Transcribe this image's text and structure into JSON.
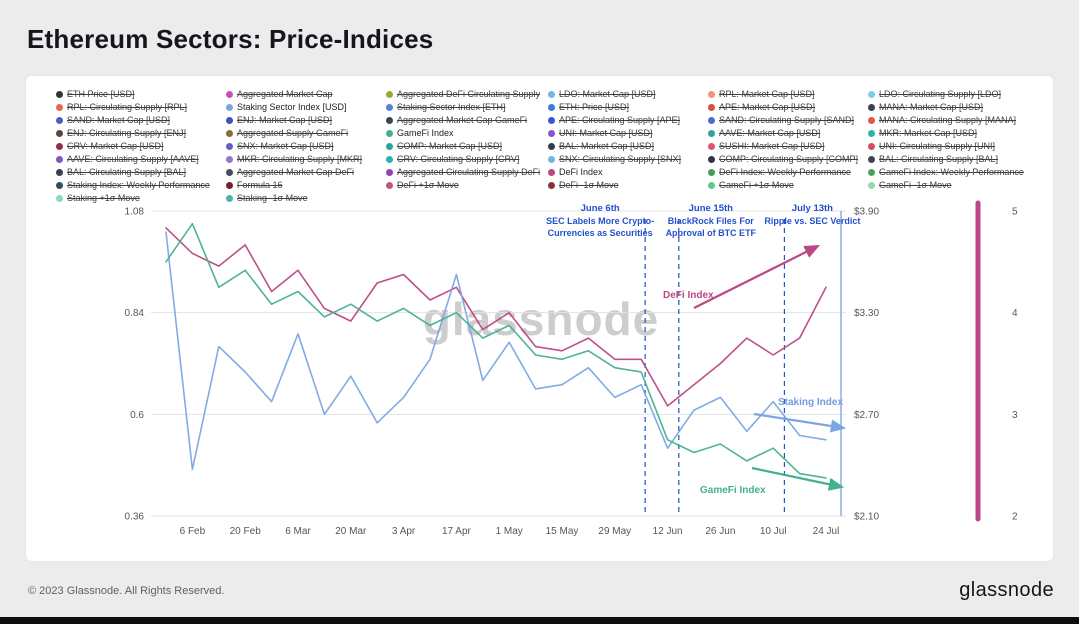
{
  "page": {
    "title": "Ethereum Sectors: Price-Indices",
    "footer_left": "© 2023 Glassnode. All Rights Reserved.",
    "brand": "glassnode",
    "watermark": "glassnode"
  },
  "legend": {
    "columns": [
      [
        {
          "label": "ETH Price [USD]",
          "color": "#2e3440",
          "active": false
        },
        {
          "label": "RPL: Circulating Supply [RPL]",
          "color": "#e06a4f",
          "active": false
        },
        {
          "label": "SAND: Market Cap [USD]",
          "color": "#4a5fc1",
          "active": false
        },
        {
          "label": "ENJ: Circulating Supply [ENJ]",
          "color": "#54483e",
          "active": false
        },
        {
          "label": "CRV: Market Cap [USD]",
          "color": "#8d2f4c",
          "active": false
        },
        {
          "label": "AAVE: Circulating Supply [AAVE]",
          "color": "#7e57c2",
          "active": false
        },
        {
          "label": "BAL: Circulating Supply [BAL]",
          "color": "#3b3f4a",
          "active": false
        },
        {
          "label": "Staking Index: Weekly Performance",
          "color": "#2f4f5f",
          "active": false
        },
        {
          "label": "Staking +1σ Move",
          "color": "#8fd6c9",
          "active": false
        }
      ],
      [
        {
          "label": "Aggregated Market Cap",
          "color": "#c84fc0",
          "active": false
        },
        {
          "label": "Staking Sector Index [USD]",
          "color": "#7aa7e3",
          "active": true
        },
        {
          "label": "ENJ: Market Cap [USD]",
          "color": "#3f51b5",
          "active": false
        },
        {
          "label": "Aggregated Supply GameFi",
          "color": "#8a6d2f",
          "active": false
        },
        {
          "label": "SNX: Market Cap [USD]",
          "color": "#6a5acd",
          "active": false
        },
        {
          "label": "MKR: Circulating Supply [MKR]",
          "color": "#9575cd",
          "active": false
        },
        {
          "label": "Aggregated Market Cap DeFi",
          "color": "#474b63",
          "active": false
        },
        {
          "label": "Formula 16",
          "color": "#7b1f2e",
          "active": false
        },
        {
          "label": "Staking -1σ Move",
          "color": "#49b6a9",
          "active": false
        }
      ],
      [
        {
          "label": "Aggregated DeFi Circulating Supply",
          "color": "#a0a832",
          "active": false
        },
        {
          "label": "Staking Sector Index [ETH]",
          "color": "#4f86d8",
          "active": false
        },
        {
          "label": "Aggregated Market Cap GameFi",
          "color": "#37474f",
          "active": false
        },
        {
          "label": "GameFi Index",
          "color": "#44b08e",
          "active": true
        },
        {
          "label": "COMP: Market Cap [USD]",
          "color": "#26a69a",
          "active": false
        },
        {
          "label": "CRV: Circulating Supply [CRV]",
          "color": "#29b0bd",
          "active": false
        },
        {
          "label": "Aggregated Circulating Supply DeFi",
          "color": "#8e44ad",
          "active": false
        },
        {
          "label": "DeFi +1σ Move",
          "color": "#c2557e",
          "active": false
        }
      ],
      [
        {
          "label": "LDO: Market Cap [USD]",
          "color": "#74b6e8",
          "active": false
        },
        {
          "label": "ETH: Price [USD]",
          "color": "#3d7bd9",
          "active": false
        },
        {
          "label": "APE: Circulating Supply [APE]",
          "color": "#3558cf",
          "active": false
        },
        {
          "label": "UNI: Market Cap [USD]",
          "color": "#8a52cf",
          "active": false
        },
        {
          "label": "BAL: Market Cap [USD]",
          "color": "#343a4f",
          "active": false
        },
        {
          "label": "SNX: Circulating Supply [SNX]",
          "color": "#68b8e4",
          "active": false
        },
        {
          "label": "DeFi Index",
          "color": "#bb4784",
          "active": true
        },
        {
          "label": "DeFi -1σ Move",
          "color": "#8d2f3c",
          "active": false
        }
      ],
      [
        {
          "label": "RPL: Market Cap [USD]",
          "color": "#f2937b",
          "active": false
        },
        {
          "label": "APE: Market Cap [USD]",
          "color": "#d94f3d",
          "active": false
        },
        {
          "label": "SAND: Circulating Supply [SAND]",
          "color": "#4a6bd4",
          "active": false
        },
        {
          "label": "AAVE: Market Cap [USD]",
          "color": "#2fa3a0",
          "active": false
        },
        {
          "label": "SUSHI: Market Cap [USD]",
          "color": "#e25570",
          "active": false
        },
        {
          "label": "COMP: Circulating Supply [COMP]",
          "color": "#30363f",
          "active": false
        },
        {
          "label": "DeFi Index: Weekly Performance",
          "color": "#3f9e55",
          "active": false
        },
        {
          "label": "GameFi +1σ Move",
          "color": "#5ec98a",
          "active": false
        }
      ],
      [
        {
          "label": "LDO: Circulating Supply [LDO]",
          "color": "#82cbe8",
          "active": false
        },
        {
          "label": "MANA: Market Cap [USD]",
          "color": "#3a4057",
          "active": false
        },
        {
          "label": "MANA: Circulating Supply [MANA]",
          "color": "#da584c",
          "active": false
        },
        {
          "label": "MKR: Market Cap [USD]",
          "color": "#2bb5a9",
          "active": false
        },
        {
          "label": "UNI: Circulating Supply [UNI]",
          "color": "#d34f60",
          "active": false
        },
        {
          "label": "BAL: Circulating Supply [BAL]",
          "color": "#3e4452",
          "active": false
        },
        {
          "label": "GameFi Index: Weekly Performance",
          "color": "#43a45f",
          "active": false
        },
        {
          "label": "GameFi -1σ Move",
          "color": "#93d9ad",
          "active": false
        }
      ]
    ]
  },
  "chart_data": {
    "type": "line",
    "title": "Ethereum Sectors: Price-Indices",
    "xlabel": "",
    "ylabel": "",
    "grid": true,
    "legend_position": "top",
    "ylim": [
      0.36,
      1.08
    ],
    "left_ticks": [
      "1.08",
      "0.84",
      "0.6",
      "0.36"
    ],
    "right_usd_ticks": [
      "$3.90",
      "$3.30",
      "$2.70",
      "$2.10"
    ],
    "right_index_ticks": [
      "5",
      "4",
      "3",
      "2"
    ],
    "x_tick_labels": [
      "6 Feb",
      "20 Feb",
      "6 Mar",
      "20 Mar",
      "3 Apr",
      "17 Apr",
      "1 May",
      "15 May",
      "29 May",
      "12 Jun",
      "26 Jun",
      "10 Jul",
      "24 Jul"
    ],
    "x": [
      "30 Jan",
      "6 Feb",
      "13 Feb",
      "20 Feb",
      "27 Feb",
      "6 Mar",
      "13 Mar",
      "20 Mar",
      "27 Mar",
      "3 Apr",
      "10 Apr",
      "17 Apr",
      "24 Apr",
      "1 May",
      "8 May",
      "15 May",
      "22 May",
      "29 May",
      "5 Jun",
      "12 Jun",
      "19 Jun",
      "26 Jun",
      "3 Jul",
      "10 Jul",
      "17 Jul",
      "24 Jul"
    ],
    "series": [
      {
        "name": "DeFi Index",
        "color": "#bb4784",
        "values": [
          1.04,
          0.98,
          0.95,
          1.0,
          0.89,
          0.94,
          0.85,
          0.82,
          0.91,
          0.93,
          0.87,
          0.9,
          0.8,
          0.84,
          0.76,
          0.75,
          0.78,
          0.73,
          0.73,
          0.62,
          0.67,
          0.72,
          0.78,
          0.74,
          0.78,
          0.9
        ]
      },
      {
        "name": "Staking Index",
        "color": "#7aa7e3",
        "values": [
          1.03,
          0.47,
          0.76,
          0.7,
          0.63,
          0.79,
          0.6,
          0.69,
          0.58,
          0.64,
          0.73,
          0.93,
          0.68,
          0.77,
          0.66,
          0.67,
          0.71,
          0.64,
          0.67,
          0.52,
          0.61,
          0.64,
          0.56,
          0.63,
          0.55,
          0.54
        ]
      },
      {
        "name": "GameFi Index",
        "color": "#44b08e",
        "values": [
          0.96,
          1.05,
          0.9,
          0.94,
          0.86,
          0.89,
          0.83,
          0.86,
          0.82,
          0.85,
          0.81,
          0.84,
          0.78,
          0.81,
          0.74,
          0.73,
          0.75,
          0.71,
          0.7,
          0.54,
          0.51,
          0.53,
          0.49,
          0.52,
          0.46,
          0.45
        ]
      }
    ],
    "event_line_color": "#2451cc",
    "annotations": [
      {
        "title": "June 6th",
        "lines": [
          "SEC Labels More Crypto-",
          "Currencies as Securities"
        ],
        "frac": 0.726,
        "label_offset": -45
      },
      {
        "title": "June 15th",
        "lines": [
          "BlackRock Files For",
          "Approval of BTC ETF"
        ],
        "frac": 0.777,
        "label_offset": 32
      },
      {
        "title": "July 13th",
        "lines": [
          "Ripple vs. SEC Verdict"
        ],
        "frac": 0.937,
        "label_offset": 28
      }
    ],
    "series_labels": [
      {
        "text": "DeFi Index",
        "color": "#bb4784",
        "x": 637,
        "y": 214
      },
      {
        "text": "Staking Index",
        "color": "#6f9de0",
        "x": 752,
        "y": 321
      },
      {
        "text": "GameFi Index",
        "color": "#44b08e",
        "x": 674,
        "y": 409
      }
    ]
  }
}
